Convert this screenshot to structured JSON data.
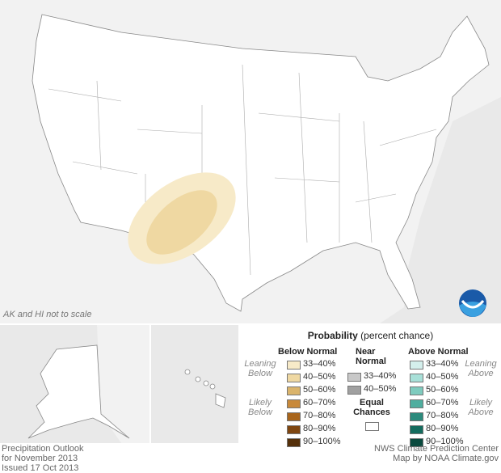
{
  "map": {
    "note": "AK and HI not to scale"
  },
  "legend": {
    "title": "Probability",
    "subtitle": "(percent chance)",
    "below_normal": {
      "heading": "Below Normal",
      "leaning": "Leaning Below",
      "likely": "Likely Below",
      "items": [
        {
          "label": "33–40%",
          "color": "#f7eac8"
        },
        {
          "label": "40–50%",
          "color": "#efd8a2"
        },
        {
          "label": "50–60%",
          "color": "#dab46c"
        },
        {
          "label": "60–70%",
          "color": "#c8893a"
        },
        {
          "label": "70–80%",
          "color": "#a8651c"
        },
        {
          "label": "80–90%",
          "color": "#7f4610"
        },
        {
          "label": "90–100%",
          "color": "#55300a"
        }
      ]
    },
    "near_normal": {
      "heading": "Near Normal",
      "items": [
        {
          "label": "33–40%",
          "color": "#c8c8c8"
        },
        {
          "label": "40–50%",
          "color": "#a0a0a0"
        }
      ]
    },
    "equal_chances": {
      "label": "Equal Chances",
      "color": "#ffffff"
    },
    "above_normal": {
      "heading": "Above Normal",
      "leaning": "Leaning Above",
      "likely": "Likely Above",
      "items": [
        {
          "label": "33–40%",
          "color": "#d4efec"
        },
        {
          "label": "40–50%",
          "color": "#a8e0d8"
        },
        {
          "label": "50–60%",
          "color": "#7fcbbe"
        },
        {
          "label": "60–70%",
          "color": "#4fae9f"
        },
        {
          "label": "70–80%",
          "color": "#2b8a7c"
        },
        {
          "label": "80–90%",
          "color": "#146c5e"
        },
        {
          "label": "90–100%",
          "color": "#0a4a3e"
        }
      ]
    }
  },
  "footer": {
    "left": [
      "Precipitation Outlook",
      "for November 2013",
      "Issued 17 Oct 2013"
    ],
    "right": [
      "NWS Climate Prediction Center",
      "Map by NOAA Climate.gov"
    ]
  }
}
